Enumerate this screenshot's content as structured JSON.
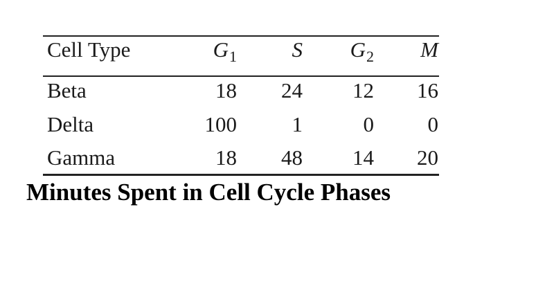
{
  "table": {
    "header": [
      {
        "text": "Cell Type"
      },
      {
        "text": "G",
        "sub": "1"
      },
      {
        "text": "S"
      },
      {
        "text": "G",
        "sub": "2"
      },
      {
        "text": "M"
      }
    ],
    "rows": [
      [
        "Beta",
        "18",
        "24",
        "12",
        "16"
      ],
      [
        "Delta",
        "100",
        "1",
        "0",
        "0"
      ],
      [
        "Gamma",
        "18",
        "48",
        "14",
        "20"
      ]
    ]
  },
  "caption": "Minutes Spent in Cell Cycle Phases"
}
